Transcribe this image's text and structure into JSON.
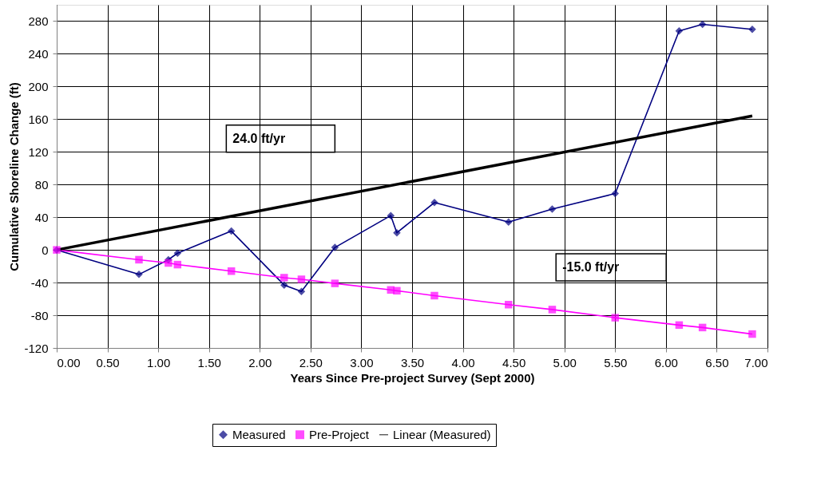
{
  "chart_data": {
    "type": "line",
    "xlabel": "Years Since Pre-project Survey (Sept 2000)",
    "ylabel": "Cumulative Shoreline Change (ft)",
    "xlim": [
      0,
      7
    ],
    "xticks": [
      {
        "value": 0,
        "label": "0.00"
      },
      {
        "value": 0.5,
        "label": "0.50"
      },
      {
        "value": 1,
        "label": "1.00"
      },
      {
        "value": 1.5,
        "label": "1.50"
      },
      {
        "value": 2,
        "label": "2.00"
      },
      {
        "value": 2.5,
        "label": "2.50"
      },
      {
        "value": 3,
        "label": "3.00"
      },
      {
        "value": 3.5,
        "label": "3.50"
      },
      {
        "value": 4,
        "label": "4.00"
      },
      {
        "value": 4.5,
        "label": "4.50"
      },
      {
        "value": 5,
        "label": "5.00"
      },
      {
        "value": 5.5,
        "label": "5.50"
      },
      {
        "value": 6,
        "label": "6.00"
      },
      {
        "value": 6.5,
        "label": "6.50"
      },
      {
        "value": 7,
        "label": "7.00"
      }
    ],
    "ylim": [
      -120,
      300
    ],
    "yticks": [
      -120,
      -80,
      -40,
      0,
      40,
      80,
      120,
      160,
      200,
      240,
      280
    ],
    "grid": true,
    "legend": "bottom",
    "series": [
      {
        "name": "Measured",
        "color": "#000080",
        "marker": "diamond",
        "x": [
          0,
          0.81,
          1.1,
          1.19,
          1.72,
          2.24,
          2.41,
          2.74,
          3.29,
          3.35,
          3.72,
          4.45,
          4.88,
          5.5,
          6.13,
          6.36,
          6.85
        ],
        "values": [
          0,
          -30,
          -12,
          -4,
          23,
          -43,
          -51,
          3,
          42,
          21,
          58,
          34,
          50,
          69,
          268,
          276,
          270
        ]
      },
      {
        "name": "Pre-Project",
        "color": "#ff00ff",
        "marker": "square",
        "x": [
          0,
          0.81,
          1.1,
          1.19,
          1.72,
          2.24,
          2.41,
          2.74,
          3.29,
          3.35,
          3.72,
          4.45,
          4.88,
          5.5,
          6.13,
          6.36,
          6.85
        ],
        "values": [
          0,
          -12,
          -16,
          -18,
          -26,
          -34,
          -36,
          -41,
          -49,
          -50,
          -56,
          -67,
          -73,
          -83,
          -92,
          -95,
          -103
        ]
      },
      {
        "name": "Linear (Measured)",
        "color": "#000000",
        "marker": "none",
        "x": [
          0,
          6.85
        ],
        "values": [
          0,
          164
        ]
      }
    ],
    "annotations": [
      "24.0  ft/yr",
      "-15.0  ft/yr"
    ]
  }
}
